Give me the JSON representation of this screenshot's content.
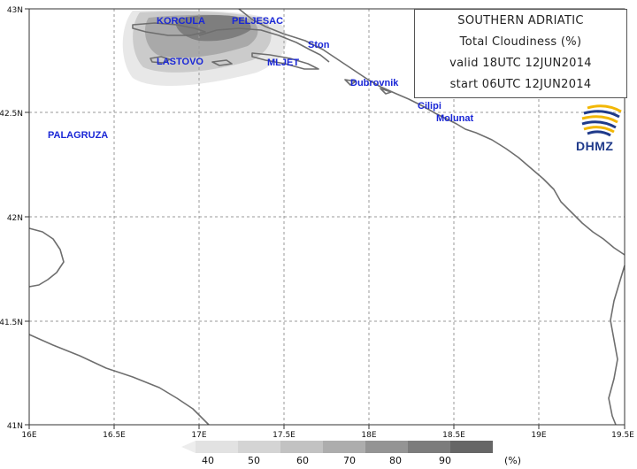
{
  "info": {
    "region": "SOUTHERN ADRIATIC",
    "variable": "Total Cloudiness (%)",
    "valid": "valid 18UTC 12JUN2014",
    "start": "start 06UTC 12JUN2014"
  },
  "logo": {
    "text": "DHMZ",
    "icon": "dhmz-swirl-logo"
  },
  "axes": {
    "lon_ticks": [
      "16E",
      "16.5E",
      "17E",
      "17.5E",
      "18E",
      "18.5E",
      "19E",
      "19.5E"
    ],
    "lat_ticks": [
      "43N",
      "42.5N",
      "42N",
      "41.5N",
      "41N"
    ],
    "lon_range": [
      16.0,
      19.5
    ],
    "lat_range": [
      41.0,
      43.0
    ]
  },
  "places": [
    {
      "name": "KORCULA",
      "lon": 16.75,
      "lat": 42.95
    },
    {
      "name": "PELJESAC",
      "lon": 17.2,
      "lat": 42.95
    },
    {
      "name": "Ston",
      "lon": 17.65,
      "lat": 42.83
    },
    {
      "name": "LASTOVO",
      "lon": 16.75,
      "lat": 42.74
    },
    {
      "name": "MLJET",
      "lon": 17.4,
      "lat": 42.74
    },
    {
      "name": "Dubrovnik",
      "lon": 17.9,
      "lat": 42.66
    },
    {
      "name": "Cilipi",
      "lon": 18.26,
      "lat": 42.55
    },
    {
      "name": "Molunat",
      "lon": 18.38,
      "lat": 42.48
    },
    {
      "name": "PALAGRUZA",
      "lon": 16.1,
      "lat": 42.4
    }
  ],
  "legend": {
    "unit": "(%)",
    "levels": [
      "40",
      "50",
      "60",
      "70",
      "80",
      "90"
    ],
    "colors": [
      "#e8e8e8",
      "#dcdcdc",
      "#cbcbcb",
      "#b5b5b5",
      "#9c9c9c",
      "#818181",
      "#666666"
    ]
  },
  "colors": {
    "coast": "#6e6e6e",
    "grid": "#9a9a9a",
    "labels": "#1a27d6"
  }
}
